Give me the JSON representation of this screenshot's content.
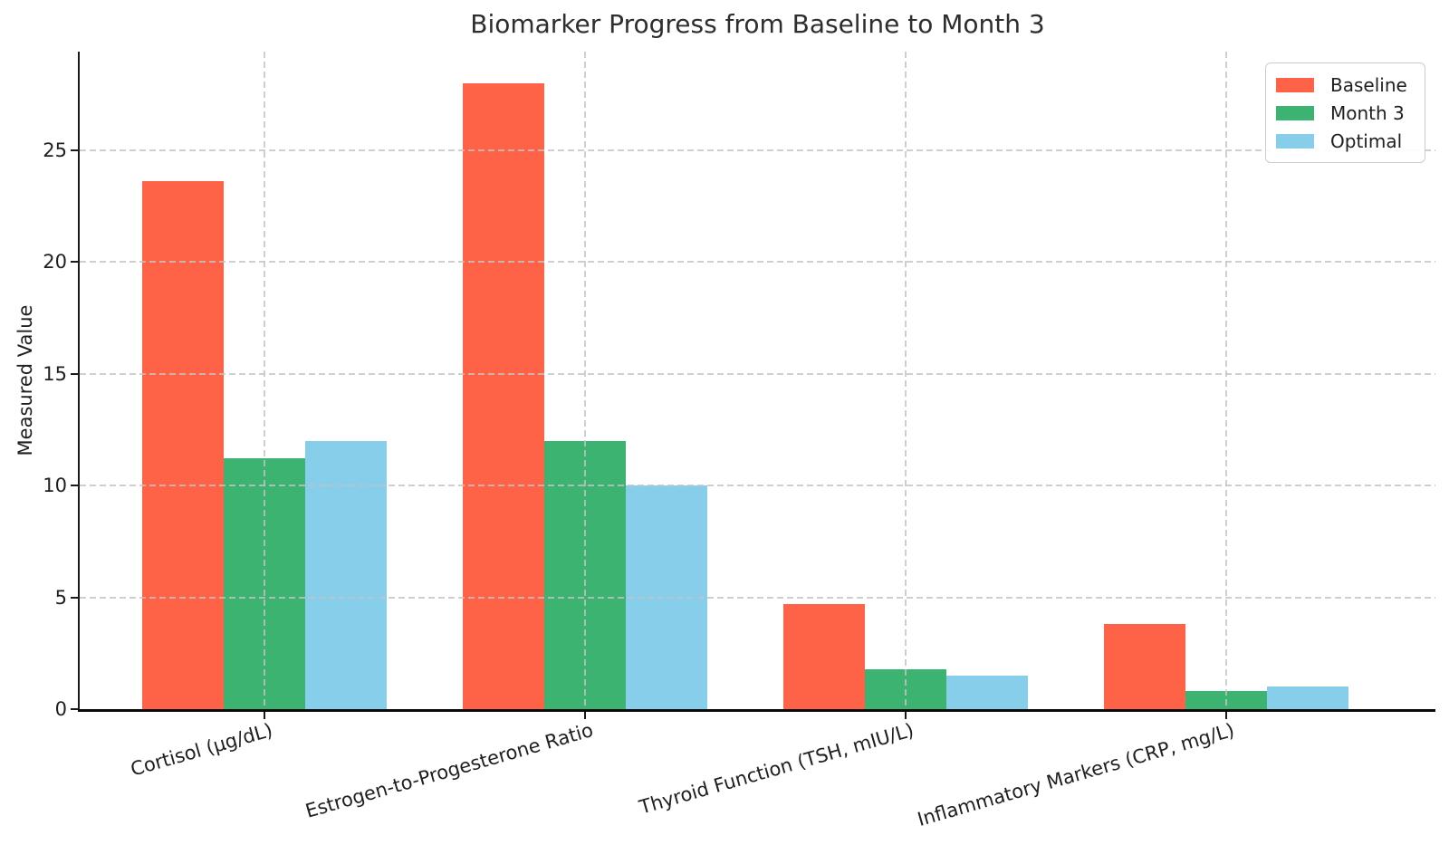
{
  "figure": {
    "title": "Biomarker Progress from Baseline to Month 3",
    "ylabel": "Measured Value"
  },
  "chart_data": {
    "type": "bar",
    "title": "Biomarker Progress from Baseline to Month 3",
    "xlabel": "",
    "ylabel": "Measured Value",
    "categories": [
      "Cortisol (µg/dL)",
      "Estrogen-to-Progesterone Ratio",
      "Thyroid Function (TSH, mIU/L)",
      "Inflammatory Markers (CRP, mg/L)"
    ],
    "series": [
      {
        "name": "Baseline",
        "color": "#FF6347",
        "values": [
          23.6,
          28.0,
          4.7,
          3.8
        ]
      },
      {
        "name": "Month 3",
        "color": "#3CB371",
        "values": [
          11.2,
          12.0,
          1.8,
          0.8
        ]
      },
      {
        "name": "Optimal",
        "color": "#87CEEB",
        "values": [
          12.0,
          10.0,
          1.5,
          1.0
        ]
      }
    ],
    "yticks": [
      0,
      5,
      10,
      15,
      20,
      25
    ],
    "ylim": [
      0,
      29.4
    ],
    "grid": true,
    "grid_style": "dashed",
    "grid_on_top_of_bars": true,
    "legend_position": "upper right",
    "legend_labels": [
      "Baseline",
      "Month 3",
      "Optimal"
    ],
    "colors": {
      "grid": "#c3c3c3",
      "text": "#1f1f1f",
      "title": "#2e2e2e",
      "spine": "#1a1a1a"
    }
  }
}
